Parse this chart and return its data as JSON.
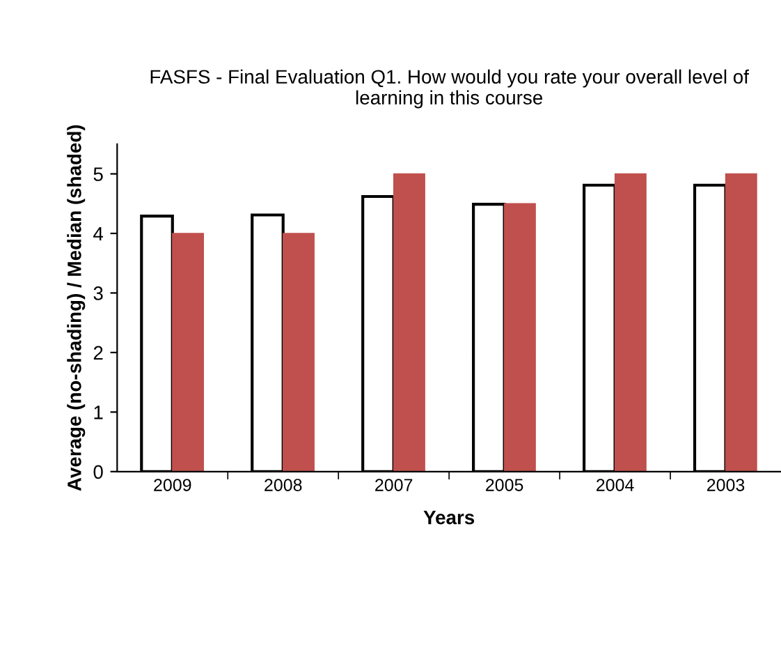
{
  "chart_data": {
    "type": "bar",
    "title": "FASFS - Final Evaluation Q1. How would you rate your overall level of learning in this course",
    "xlabel": "Years",
    "ylabel": "Average (no-shading) / Median (shaded)",
    "categories": [
      "2009",
      "2008",
      "2007",
      "2005",
      "2004",
      "2003"
    ],
    "series": [
      {
        "color": "#ffffff",
        "values": [
          4.29,
          4.31,
          4.62,
          4.49,
          4.81,
          4.81
        ]
      },
      {
        "color": "#c0504d",
        "values": [
          4,
          4,
          5,
          4.5,
          5,
          5
        ]
      }
    ],
    "ylim": [
      0,
      5.5
    ],
    "yticks": [
      0,
      1,
      2,
      3,
      4,
      5
    ],
    "grid": false,
    "legend": false
  }
}
